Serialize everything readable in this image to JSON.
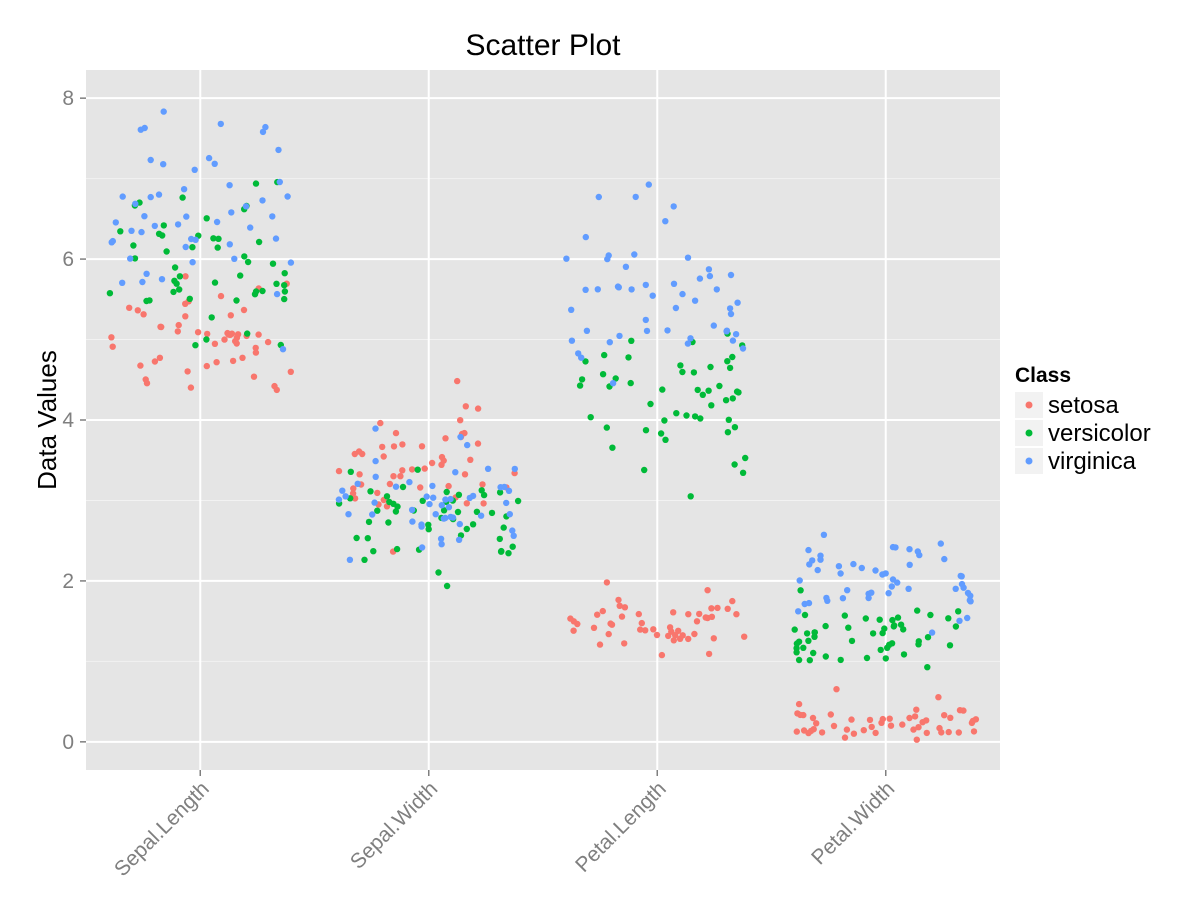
{
  "chart_data": {
    "type": "scatter",
    "title": "Scatter Plot",
    "xlabel": "",
    "ylabel": "Data Values",
    "categories": [
      "Sepal.Length",
      "Sepal.Width",
      "Petal.Length",
      "Petal.Width"
    ],
    "y_ticks": [
      "0",
      "2",
      "4",
      "6",
      "8"
    ],
    "ylim": [
      -0.35,
      8.35
    ],
    "grid": true,
    "legend": {
      "title": "Class",
      "position": "right"
    },
    "series": [
      {
        "name": "setosa",
        "color": "#F8766D",
        "values": [
          [
            5.1,
            4.9,
            4.7,
            4.6,
            5.0,
            5.4,
            4.6,
            5.0,
            4.4,
            4.9,
            5.4,
            4.8,
            4.8,
            4.3,
            5.8,
            5.7,
            5.4,
            5.1,
            5.7,
            5.1,
            5.4,
            5.1,
            4.6,
            5.1,
            4.8,
            5.0,
            5.0,
            5.2,
            5.2,
            4.7,
            4.8,
            5.4,
            5.2,
            5.5,
            4.9,
            5.0,
            5.5,
            4.9,
            4.4,
            5.1,
            5.0,
            4.5,
            4.4,
            5.0,
            5.1,
            4.8,
            5.1,
            4.6,
            5.3,
            5.0
          ],
          [
            3.5,
            3.0,
            3.2,
            3.1,
            3.6,
            3.9,
            3.4,
            3.4,
            2.9,
            3.1,
            3.7,
            3.4,
            3.0,
            3.0,
            4.0,
            4.4,
            3.9,
            3.5,
            3.8,
            3.8,
            3.4,
            3.7,
            3.6,
            3.3,
            3.4,
            3.0,
            3.4,
            3.5,
            3.4,
            3.2,
            3.1,
            3.4,
            4.1,
            4.2,
            3.1,
            3.2,
            3.5,
            3.6,
            3.0,
            3.4,
            3.5,
            2.3,
            3.2,
            3.5,
            3.8,
            3.0,
            3.8,
            3.2,
            3.7,
            3.3
          ],
          [
            1.4,
            1.4,
            1.3,
            1.5,
            1.4,
            1.7,
            1.4,
            1.5,
            1.4,
            1.5,
            1.5,
            1.6,
            1.4,
            1.1,
            1.2,
            1.5,
            1.3,
            1.4,
            1.7,
            1.5,
            1.7,
            1.5,
            1.0,
            1.7,
            1.9,
            1.6,
            1.6,
            1.5,
            1.4,
            1.6,
            1.6,
            1.5,
            1.5,
            1.4,
            1.5,
            1.2,
            1.3,
            1.4,
            1.3,
            1.5,
            1.3,
            1.3,
            1.3,
            1.6,
            1.9,
            1.4,
            1.6,
            1.4,
            1.5,
            1.4
          ],
          [
            0.2,
            0.2,
            0.2,
            0.2,
            0.2,
            0.4,
            0.3,
            0.2,
            0.2,
            0.1,
            0.2,
            0.2,
            0.1,
            0.1,
            0.2,
            0.4,
            0.4,
            0.3,
            0.3,
            0.3,
            0.2,
            0.4,
            0.2,
            0.5,
            0.2,
            0.2,
            0.4,
            0.2,
            0.2,
            0.2,
            0.2,
            0.4,
            0.1,
            0.2,
            0.2,
            0.2,
            0.2,
            0.1,
            0.2,
            0.2,
            0.3,
            0.3,
            0.2,
            0.6,
            0.4,
            0.3,
            0.2,
            0.2,
            0.2,
            0.2
          ]
        ]
      },
      {
        "name": "versicolor",
        "color": "#00BA38",
        "values": [
          [
            7.0,
            6.4,
            6.9,
            5.5,
            6.5,
            5.7,
            6.3,
            4.9,
            6.6,
            5.2,
            5.0,
            5.9,
            6.0,
            6.1,
            5.6,
            6.7,
            5.6,
            5.8,
            6.2,
            5.6,
            5.9,
            6.1,
            6.3,
            6.1,
            6.4,
            6.6,
            6.8,
            6.7,
            6.0,
            5.7,
            5.5,
            5.5,
            5.8,
            6.0,
            5.4,
            6.0,
            6.7,
            6.3,
            5.6,
            5.5,
            5.5,
            6.1,
            5.8,
            5.0,
            5.6,
            5.7,
            5.7,
            6.2,
            5.1,
            5.7
          ],
          [
            3.2,
            3.2,
            3.1,
            2.3,
            2.8,
            2.8,
            3.3,
            2.4,
            2.9,
            2.7,
            2.0,
            3.0,
            2.2,
            2.9,
            2.9,
            3.1,
            3.0,
            2.7,
            2.2,
            2.5,
            3.2,
            2.8,
            2.5,
            2.8,
            2.9,
            3.0,
            2.8,
            3.0,
            2.9,
            2.6,
            2.4,
            2.4,
            2.7,
            2.7,
            3.0,
            3.4,
            3.1,
            2.3,
            3.0,
            2.5,
            2.6,
            3.0,
            2.6,
            2.3,
            2.7,
            3.0,
            2.9,
            2.9,
            2.5,
            2.8
          ],
          [
            4.7,
            4.5,
            4.9,
            4.0,
            4.6,
            4.5,
            4.7,
            3.3,
            4.6,
            3.9,
            3.5,
            4.2,
            4.0,
            4.7,
            3.6,
            4.4,
            4.5,
            4.1,
            4.5,
            3.9,
            4.8,
            4.0,
            4.9,
            4.7,
            4.3,
            4.4,
            4.8,
            5.0,
            4.5,
            3.5,
            3.8,
            3.7,
            3.9,
            5.1,
            4.5,
            4.5,
            4.7,
            4.4,
            4.1,
            4.0,
            4.4,
            4.6,
            4.0,
            3.3,
            4.2,
            4.2,
            4.2,
            4.3,
            3.0,
            4.1
          ],
          [
            1.4,
            1.5,
            1.5,
            1.3,
            1.5,
            1.3,
            1.6,
            1.0,
            1.3,
            1.4,
            1.0,
            1.5,
            1.0,
            1.4,
            1.3,
            1.4,
            1.5,
            1.0,
            1.5,
            1.1,
            1.8,
            1.3,
            1.5,
            1.2,
            1.3,
            1.4,
            1.4,
            1.7,
            1.5,
            1.0,
            1.1,
            1.0,
            1.2,
            1.6,
            1.5,
            1.6,
            1.5,
            1.3,
            1.3,
            1.3,
            1.2,
            1.4,
            1.2,
            1.0,
            1.3,
            1.2,
            1.3,
            1.3,
            1.1,
            1.3
          ]
        ]
      },
      {
        "name": "virginica",
        "color": "#619CFF",
        "values": [
          [
            6.3,
            5.8,
            7.1,
            6.3,
            6.5,
            7.6,
            4.9,
            7.3,
            6.7,
            7.2,
            6.5,
            6.4,
            6.8,
            5.7,
            5.8,
            6.4,
            6.5,
            7.7,
            7.7,
            6.0,
            6.9,
            5.6,
            7.7,
            6.3,
            6.7,
            7.2,
            6.2,
            6.1,
            6.4,
            7.2,
            7.4,
            7.9,
            6.4,
            6.3,
            6.1,
            7.7,
            6.3,
            6.4,
            6.0,
            6.9,
            6.7,
            6.9,
            5.8,
            6.8,
            6.7,
            6.7,
            6.3,
            6.5,
            6.2,
            5.9
          ],
          [
            3.3,
            2.7,
            3.0,
            2.9,
            3.0,
            3.0,
            2.5,
            2.9,
            2.5,
            3.6,
            3.2,
            2.7,
            3.0,
            2.5,
            2.8,
            3.2,
            3.0,
            3.8,
            2.6,
            2.2,
            3.2,
            2.8,
            2.8,
            2.7,
            3.3,
            3.2,
            2.8,
            3.0,
            2.8,
            3.0,
            2.8,
            3.8,
            2.8,
            2.8,
            2.6,
            3.0,
            3.4,
            3.1,
            3.0,
            3.1,
            3.1,
            3.1,
            2.7,
            3.2,
            3.3,
            3.0,
            2.5,
            3.0,
            3.4,
            3.0
          ],
          [
            6.0,
            5.1,
            5.9,
            5.6,
            5.8,
            6.6,
            4.5,
            6.3,
            5.8,
            6.1,
            5.1,
            5.3,
            5.5,
            5.0,
            5.1,
            5.3,
            5.5,
            6.7,
            6.9,
            5.0,
            5.7,
            4.9,
            6.7,
            4.9,
            5.7,
            6.0,
            4.8,
            4.9,
            5.6,
            5.8,
            6.1,
            6.4,
            5.6,
            5.1,
            5.6,
            6.1,
            5.6,
            5.5,
            4.8,
            5.4,
            5.6,
            5.1,
            5.1,
            5.9,
            5.7,
            5.2,
            5.0,
            5.2,
            5.4,
            5.1
          ],
          [
            2.5,
            1.9,
            2.1,
            1.8,
            2.2,
            2.1,
            1.7,
            1.8,
            1.8,
            2.5,
            2.0,
            1.9,
            2.1,
            2.0,
            2.4,
            2.3,
            1.8,
            2.2,
            2.3,
            1.5,
            2.3,
            2.0,
            2.0,
            1.8,
            2.1,
            1.8,
            1.8,
            1.8,
            2.1,
            1.6,
            1.9,
            2.0,
            2.2,
            1.5,
            1.4,
            2.3,
            2.4,
            1.8,
            1.8,
            2.1,
            2.4,
            2.3,
            1.9,
            2.3,
            2.5,
            2.3,
            1.9,
            2.0,
            2.3,
            1.8
          ]
        ]
      }
    ]
  }
}
